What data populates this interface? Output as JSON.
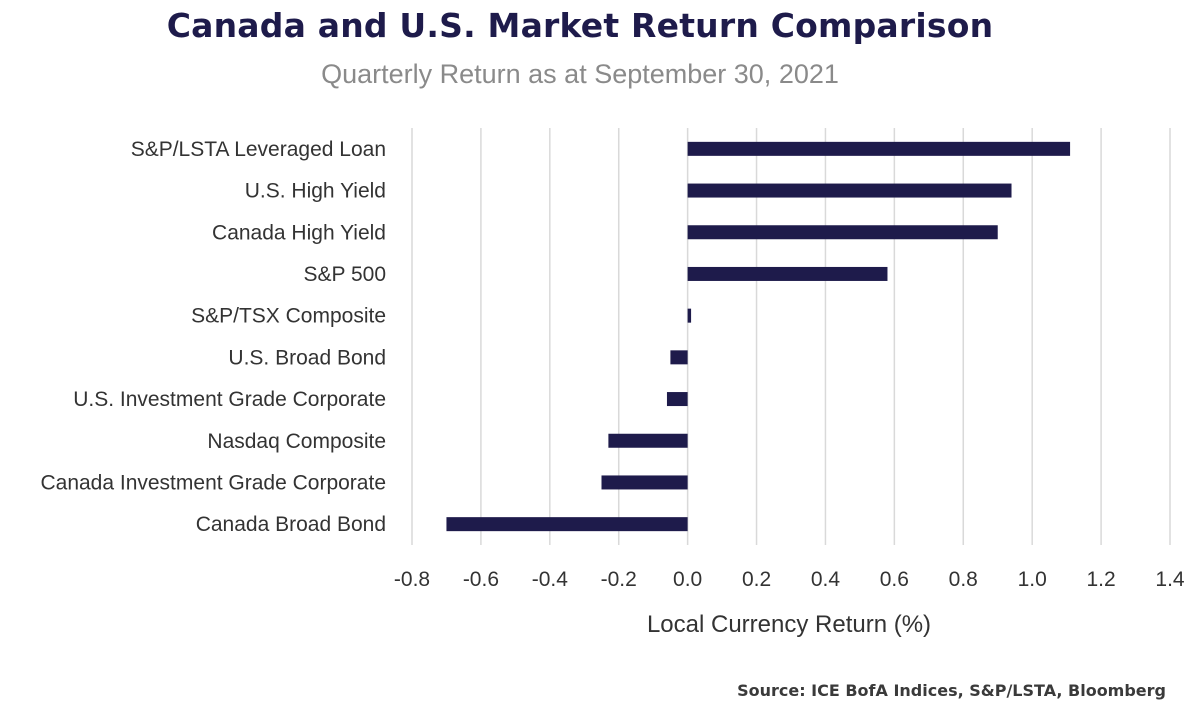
{
  "header": {
    "title": "Canada and U.S. Market Return Comparison",
    "subtitle": "Quarterly Return as at September 30, 2021"
  },
  "footer": {
    "source": "Source: ICE BofA Indices, S&P/LSTA, Bloomberg"
  },
  "colors": {
    "bar": "#1e1b4b",
    "grid": "#d9d9d9",
    "title": "#1e1b4b"
  },
  "chart_data": {
    "type": "bar",
    "orientation": "horizontal",
    "title": "Canada and U.S. Market Return Comparison",
    "subtitle": "Quarterly Return as at September 30, 2021",
    "xlabel": "Local Currency Return (%)",
    "ylabel": "",
    "xlim": [
      -0.8,
      1.4
    ],
    "xticks": [
      "-0.8",
      "-0.6",
      "-0.4",
      "-0.2",
      "0.0",
      "0.2",
      "0.4",
      "0.6",
      "0.8",
      "1.0",
      "1.2",
      "1.4"
    ],
    "grid": "vertical",
    "legend": "none",
    "categories": [
      "S&P/LSTA Leveraged Loan",
      "U.S. High Yield",
      "Canada High Yield",
      "S&P 500",
      "S&P/TSX Composite",
      "U.S. Broad Bond",
      "U.S. Investment Grade Corporate",
      "Nasdaq Composite",
      "Canada Investment Grade Corporate",
      "Canada Broad Bond"
    ],
    "values": [
      1.11,
      0.94,
      0.9,
      0.58,
      0.01,
      -0.05,
      -0.06,
      -0.23,
      -0.25,
      -0.7
    ]
  }
}
